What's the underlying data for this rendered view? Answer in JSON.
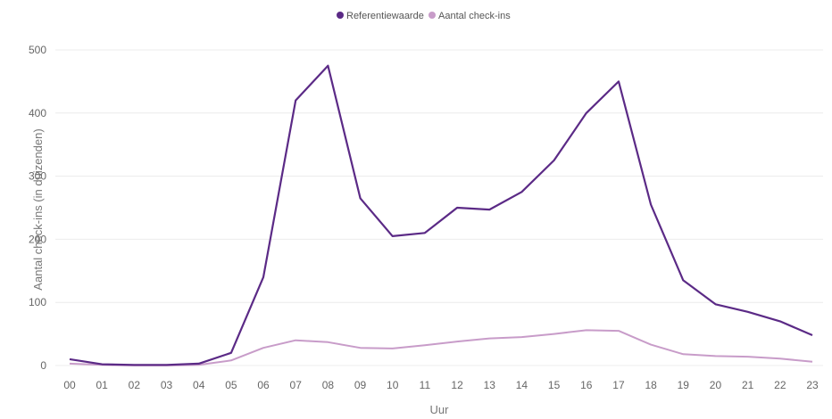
{
  "chart_data": {
    "type": "line",
    "categories": [
      "00",
      "01",
      "02",
      "03",
      "04",
      "05",
      "06",
      "07",
      "08",
      "09",
      "10",
      "11",
      "12",
      "13",
      "14",
      "15",
      "16",
      "17",
      "18",
      "19",
      "20",
      "21",
      "22",
      "23"
    ],
    "series": [
      {
        "name": "Referentiewaarde",
        "color": "#5b2a86",
        "values": [
          10,
          2,
          1,
          1,
          3,
          20,
          140,
          420,
          475,
          265,
          205,
          210,
          250,
          247,
          275,
          325,
          400,
          450,
          255,
          135,
          97,
          85,
          70,
          48
        ]
      },
      {
        "name": "Aantal check-ins",
        "color": "#c89cc9",
        "values": [
          3,
          1,
          0,
          0,
          1,
          8,
          28,
          40,
          37,
          28,
          27,
          32,
          38,
          43,
          45,
          50,
          56,
          55,
          33,
          18,
          15,
          14,
          11,
          6
        ]
      }
    ],
    "xlabel": "Uur",
    "ylabel": "Aantal check-ins (in duizenden)",
    "ylim": [
      0,
      500
    ],
    "yticks": [
      0,
      100,
      200,
      300,
      400,
      500
    ],
    "grid": true,
    "legend": "top-center"
  }
}
